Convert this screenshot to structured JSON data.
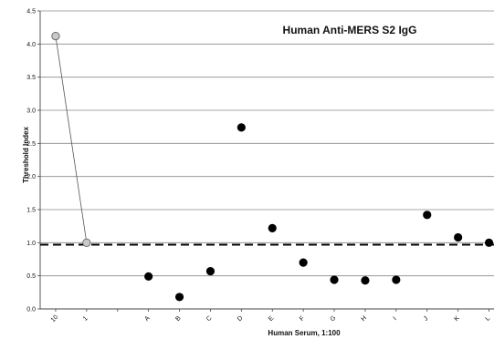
{
  "chart_data": {
    "type": "scatter",
    "title": "Human Anti-MERS S2 IgG",
    "xlabel": "Human Serum, 1:100",
    "ylabel": "Threshold Index",
    "ylim": [
      0.0,
      4.5
    ],
    "yticks": [
      "0.0",
      "0.5",
      "1.0",
      "1.5",
      "2.0",
      "2.5",
      "3.0",
      "3.5",
      "4.0",
      "4.5"
    ],
    "categories": [
      "10",
      "1",
      "",
      "A",
      "B",
      "C",
      "D",
      "E",
      "F",
      "G",
      "H",
      "I",
      "J",
      "K",
      "L"
    ],
    "grid": "horizontal",
    "threshold": 0.97,
    "series": [
      {
        "points": [
          {
            "x": "10",
            "y": 4.12
          },
          {
            "x": "1",
            "y": 1.0
          }
        ],
        "marker": "circle",
        "color": "#c8c8c8",
        "connected": true
      },
      {
        "points": [
          {
            "x": "A",
            "y": 0.49
          },
          {
            "x": "B",
            "y": 0.18
          },
          {
            "x": "C",
            "y": 0.57
          },
          {
            "x": "D",
            "y": 2.74
          },
          {
            "x": "E",
            "y": 1.22
          },
          {
            "x": "F",
            "y": 0.7
          },
          {
            "x": "G",
            "y": 0.44
          },
          {
            "x": "H",
            "y": 0.43
          },
          {
            "x": "I",
            "y": 0.44
          },
          {
            "x": "J",
            "y": 1.42
          },
          {
            "x": "K",
            "y": 1.08
          },
          {
            "x": "L",
            "y": 1.0
          }
        ],
        "marker": "circle",
        "color": "#000000",
        "connected": false
      }
    ]
  }
}
